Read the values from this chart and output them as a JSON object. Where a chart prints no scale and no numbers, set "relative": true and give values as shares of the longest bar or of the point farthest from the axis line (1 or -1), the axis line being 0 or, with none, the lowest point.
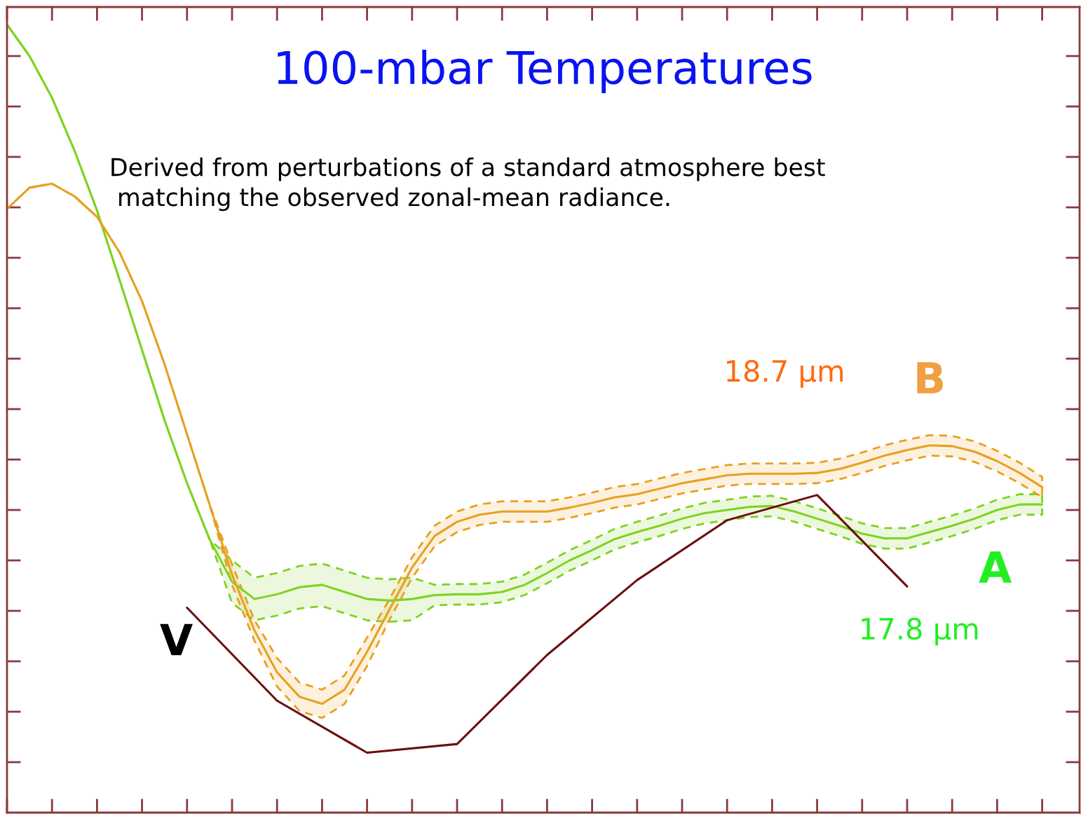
{
  "chart_data": {
    "type": "line",
    "title": "100-mbar Temperatures",
    "subtitle": "Derived from perturbations of a standard atmosphere best\n matching the observed zonal-mean radiance.",
    "relative": true,
    "grid": false,
    "legend": false,
    "categories": [
      null,
      null,
      null,
      null,
      null,
      null,
      null,
      null,
      null,
      null,
      null,
      null,
      null,
      null,
      null,
      null,
      null,
      null,
      null,
      null,
      null,
      null,
      null,
      null,
      null,
      null,
      null,
      null,
      null,
      null,
      null,
      null,
      null,
      null,
      null,
      null,
      null,
      null,
      null,
      null,
      null,
      null,
      null,
      null,
      null,
      null,
      null
    ],
    "series": [
      {
        "name": "A",
        "color": "#7ed321",
        "values": [
          1.0,
          0.96,
          0.907,
          0.84,
          0.764,
          0.676,
          0.587,
          0.498,
          0.418,
          0.347,
          0.293,
          0.271,
          0.277,
          0.286,
          0.289,
          0.28,
          0.271,
          0.269,
          0.271,
          0.276,
          0.277,
          0.277,
          0.28,
          0.289,
          0.304,
          0.32,
          0.333,
          0.347,
          0.356,
          0.364,
          0.373,
          0.38,
          0.384,
          0.388,
          0.389,
          0.382,
          0.373,
          0.364,
          0.354,
          0.348,
          0.348,
          0.356,
          0.364,
          0.373,
          0.384,
          0.391,
          0.391
        ],
        "lower": [
          1.0,
          0.96,
          0.907,
          0.84,
          0.764,
          0.676,
          0.587,
          0.498,
          0.418,
          0.347,
          0.266,
          0.244,
          0.25,
          0.259,
          0.262,
          0.253,
          0.244,
          0.242,
          0.244,
          0.263,
          0.264,
          0.264,
          0.267,
          0.276,
          0.291,
          0.307,
          0.32,
          0.334,
          0.343,
          0.351,
          0.36,
          0.367,
          0.371,
          0.375,
          0.376,
          0.369,
          0.36,
          0.351,
          0.341,
          0.335,
          0.335,
          0.343,
          0.351,
          0.36,
          0.371,
          0.378,
          0.378
        ],
        "upper": [
          1.0,
          0.96,
          0.907,
          0.84,
          0.764,
          0.676,
          0.587,
          0.498,
          0.418,
          0.347,
          0.32,
          0.298,
          0.304,
          0.313,
          0.316,
          0.307,
          0.298,
          0.296,
          0.298,
          0.289,
          0.29,
          0.29,
          0.293,
          0.302,
          0.317,
          0.333,
          0.346,
          0.36,
          0.369,
          0.377,
          0.386,
          0.393,
          0.397,
          0.401,
          0.402,
          0.395,
          0.386,
          0.377,
          0.367,
          0.361,
          0.361,
          0.369,
          0.377,
          0.386,
          0.397,
          0.404,
          0.404
        ]
      },
      {
        "name": "B",
        "color": "#e8a020",
        "values": [
          0.766,
          0.793,
          0.798,
          0.782,
          0.756,
          0.711,
          0.649,
          0.569,
          0.48,
          0.391,
          0.302,
          0.231,
          0.178,
          0.147,
          0.138,
          0.156,
          0.204,
          0.258,
          0.311,
          0.351,
          0.369,
          0.378,
          0.382,
          0.382,
          0.382,
          0.387,
          0.393,
          0.4,
          0.404,
          0.411,
          0.418,
          0.423,
          0.428,
          0.43,
          0.43,
          0.43,
          0.431,
          0.436,
          0.444,
          0.453,
          0.46,
          0.466,
          0.465,
          0.458,
          0.446,
          0.431,
          0.413
        ],
        "lower": [
          0.766,
          0.793,
          0.798,
          0.782,
          0.756,
          0.711,
          0.649,
          0.569,
          0.48,
          0.391,
          0.289,
          0.218,
          0.16,
          0.129,
          0.12,
          0.138,
          0.186,
          0.245,
          0.298,
          0.338,
          0.356,
          0.365,
          0.369,
          0.369,
          0.369,
          0.374,
          0.38,
          0.387,
          0.391,
          0.398,
          0.405,
          0.41,
          0.415,
          0.417,
          0.417,
          0.417,
          0.418,
          0.423,
          0.431,
          0.44,
          0.447,
          0.453,
          0.452,
          0.445,
          0.433,
          0.418,
          0.4
        ],
        "upper": [
          0.766,
          0.793,
          0.798,
          0.782,
          0.756,
          0.711,
          0.649,
          0.569,
          0.48,
          0.391,
          0.315,
          0.244,
          0.196,
          0.165,
          0.156,
          0.174,
          0.222,
          0.271,
          0.324,
          0.364,
          0.382,
          0.391,
          0.395,
          0.395,
          0.395,
          0.4,
          0.406,
          0.413,
          0.417,
          0.424,
          0.431,
          0.436,
          0.441,
          0.443,
          0.443,
          0.443,
          0.444,
          0.449,
          0.457,
          0.466,
          0.473,
          0.479,
          0.478,
          0.471,
          0.459,
          0.444,
          0.426
        ]
      },
      {
        "name": "V",
        "color": "#6b0f0f",
        "values": [
          null,
          null,
          null,
          null,
          null,
          null,
          null,
          null,
          0.26,
          null,
          null,
          null,
          0.142,
          null,
          null,
          null,
          0.076,
          null,
          null,
          null,
          0.087,
          null,
          null,
          null,
          0.2,
          null,
          null,
          null,
          0.295,
          null,
          null,
          null,
          0.371,
          null,
          null,
          null,
          0.403,
          null,
          null,
          null,
          0.287,
          null,
          null,
          null,
          null,
          null,
          null
        ]
      }
    ],
    "annotations": [
      "18.7 µm",
      "17.8 µm"
    ]
  }
}
